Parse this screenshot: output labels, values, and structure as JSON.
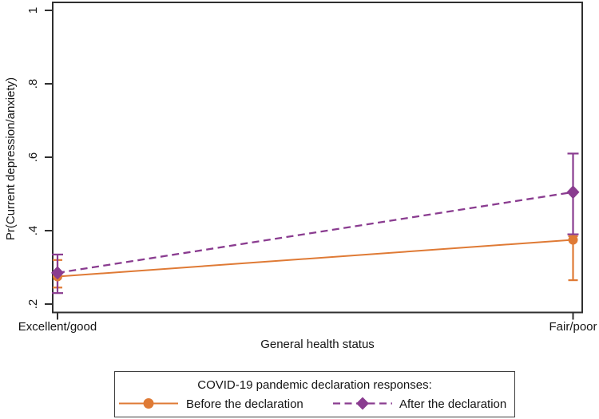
{
  "chart_data": {
    "type": "line",
    "title": "",
    "xlabel": "General health status",
    "ylabel": "Pr(Current depression/anxiety)",
    "categories": [
      "Excellent/good",
      "Fair/poor"
    ],
    "y_ticks": {
      "labels": [
        ".2",
        ".4",
        ".6",
        ".8",
        "1"
      ],
      "values": [
        0.2,
        0.4,
        0.6,
        0.8,
        1
      ]
    },
    "ylim": [
      0.175,
      1.02
    ],
    "grid": false,
    "error_bars": true,
    "legend": {
      "title": "COVID-19 pandemic declaration responses:",
      "position": "bottom"
    },
    "series": [
      {
        "name": "Before the declaration",
        "color": "#DF7A35",
        "line_style": "solid",
        "marker": "circle",
        "values": [
          0.275,
          0.375
        ],
        "ci_low": [
          0.245,
          0.265
        ],
        "ci_high": [
          0.32,
          0.385
        ]
      },
      {
        "name": "After the declaration",
        "color": "#8A3C90",
        "line_style": "dashed",
        "marker": "diamond",
        "values": [
          0.285,
          0.505
        ],
        "ci_low": [
          0.23,
          0.39
        ],
        "ci_high": [
          0.335,
          0.61
        ]
      }
    ]
  },
  "colors": {
    "axis": "#2f2f2f",
    "text": "#141414",
    "legend_border": "#3f3f3f",
    "background": "#ffffff"
  }
}
